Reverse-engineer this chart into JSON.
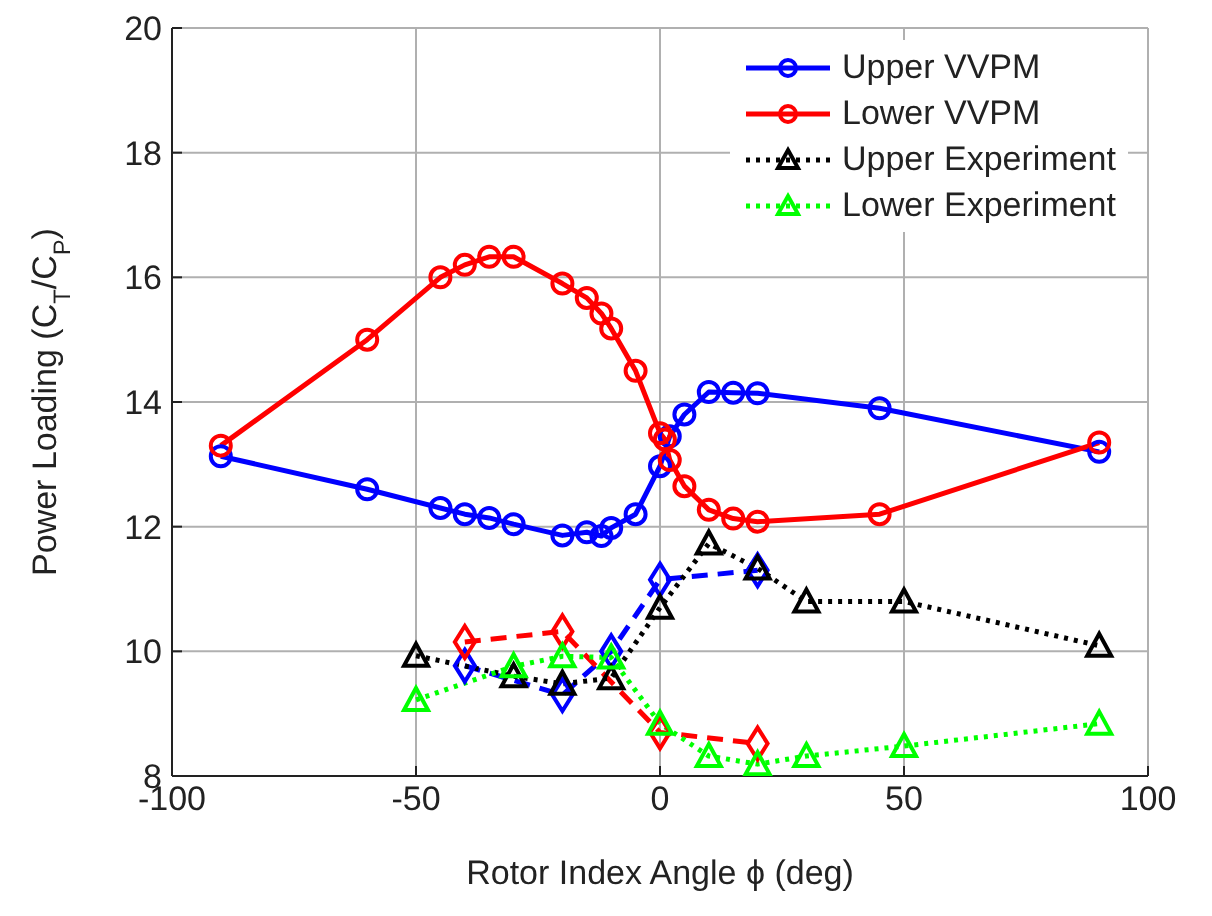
{
  "chart_data": {
    "type": "line",
    "xlabel": "Rotor Index Angle ϕ (deg)",
    "ylabel": "Power Loading (C$_{T}$/C$_{P}$)",
    "xlim": [
      -100,
      100
    ],
    "xticks": [
      -100,
      -50,
      0,
      50,
      100
    ],
    "ylim": [
      8,
      20
    ],
    "yticks": [
      8,
      10,
      12,
      14,
      16,
      18,
      20
    ],
    "grid": true,
    "legend": "top right",
    "series": [
      {
        "name": "Upper VVPM",
        "color": "#0000ff",
        "marker": "circle",
        "line_style": "solid",
        "x": [
          -90,
          -60,
          -45,
          -40,
          -35,
          -30,
          -20,
          -15,
          -12,
          -10,
          -5,
          0,
          2,
          5,
          10,
          15,
          20,
          45,
          90
        ],
        "values": [
          13.13,
          12.6,
          12.3,
          12.2,
          12.14,
          12.04,
          11.86,
          11.91,
          11.85,
          11.98,
          12.2,
          12.97,
          13.45,
          13.8,
          14.16,
          14.15,
          14.14,
          13.9,
          13.2
        ]
      },
      {
        "name": "Lower VVPM",
        "color": "#ff0000",
        "marker": "circle",
        "line_style": "solid",
        "x": [
          -90,
          -60,
          -45,
          -40,
          -35,
          -30,
          -20,
          -15,
          -12,
          -10,
          -5,
          0,
          1,
          2,
          5,
          10,
          15,
          20,
          45,
          90
        ],
        "values": [
          13.3,
          15.0,
          16.0,
          16.2,
          16.33,
          16.33,
          15.9,
          15.67,
          15.42,
          15.18,
          14.5,
          13.5,
          13.4,
          13.07,
          12.65,
          12.27,
          12.13,
          12.08,
          12.2,
          13.35
        ]
      },
      {
        "color": "#0000ff",
        "marker": "diamond",
        "line_style": "dashed",
        "x": [
          -40,
          -20,
          -10,
          0,
          20
        ],
        "values": [
          9.77,
          9.3,
          10.0,
          11.15,
          11.3
        ]
      },
      {
        "color": "#ff0000",
        "marker": "diamond",
        "line_style": "dashed",
        "x": [
          -40,
          -20,
          0,
          20
        ],
        "values": [
          10.15,
          10.32,
          8.7,
          8.52
        ]
      },
      {
        "name": "Upper Experiment",
        "color": "#000000",
        "marker": "triangle",
        "line_style": "dotted",
        "x": [
          -50,
          -30,
          -20,
          -10,
          0,
          10,
          20,
          30,
          50,
          90
        ],
        "values": [
          9.93,
          9.6,
          9.48,
          9.57,
          10.7,
          11.73,
          11.33,
          10.8,
          10.8,
          10.09
        ]
      },
      {
        "name": "Lower Experiment",
        "color": "#00ff00",
        "marker": "triangle",
        "line_style": "dotted",
        "x": [
          -50,
          -30,
          -20,
          -10,
          0,
          10,
          20,
          30,
          50,
          90
        ],
        "values": [
          9.22,
          9.76,
          9.92,
          9.9,
          8.84,
          8.32,
          8.19,
          8.32,
          8.48,
          8.84
        ]
      }
    ]
  }
}
